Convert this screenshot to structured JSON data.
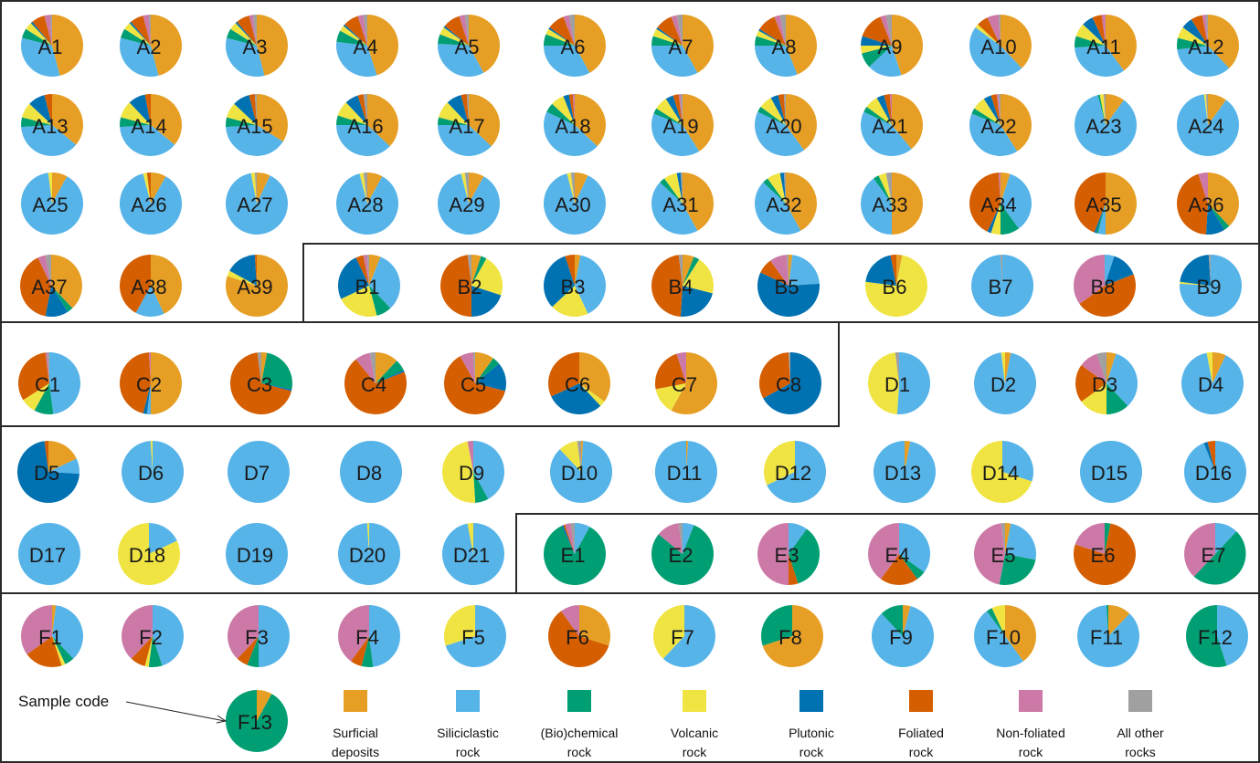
{
  "chart_data": {
    "type": "pie",
    "title": "",
    "categories": [
      "Surficial deposits",
      "Siliciclastic rock",
      "(Bio)chemical rock",
      "Volcanic rock",
      "Plutonic rock",
      "Foliated rock",
      "Non-foliated rock",
      "All other rocks"
    ],
    "legend": [
      {
        "line1": "Surficial",
        "line2": "deposits",
        "color": "#E69F24"
      },
      {
        "line1": "Siliciclastic",
        "line2": "rock",
        "color": "#56B4E9"
      },
      {
        "line1": "(Bio)chemical",
        "line2": "rock",
        "color": "#009E73"
      },
      {
        "line1": "Volcanic",
        "line2": "rock",
        "color": "#F0E442"
      },
      {
        "line1": "Plutonic",
        "line2": "rock",
        "color": "#0072B2"
      },
      {
        "line1": "Foliated",
        "line2": "rock",
        "color": "#D55E00"
      },
      {
        "line1": "Non-foliated",
        "line2": "rock",
        "color": "#CC79A7"
      },
      {
        "line1": "All other",
        "line2": "rocks",
        "color": "#A0A0A0"
      }
    ],
    "legend_placement": "bottom",
    "annotation": "Sample code",
    "annotation_target": "F13",
    "units": "percent",
    "samples": [
      {
        "code": "A1",
        "values": [
          46,
          33,
          5,
          4,
          1,
          7,
          3,
          1
        ]
      },
      {
        "code": "A2",
        "values": [
          46,
          33,
          5,
          4,
          1,
          7,
          3,
          1
        ]
      },
      {
        "code": "A3",
        "values": [
          46,
          33,
          5,
          4,
          1,
          7,
          2,
          2
        ]
      },
      {
        "code": "A4",
        "values": [
          45,
          32,
          6,
          3,
          1,
          8,
          3,
          2
        ]
      },
      {
        "code": "A5",
        "values": [
          42,
          34,
          5,
          4,
          1,
          9,
          3,
          2
        ]
      },
      {
        "code": "A6",
        "values": [
          42,
          33,
          6,
          3,
          1,
          9,
          3,
          3
        ]
      },
      {
        "code": "A7",
        "values": [
          42,
          33,
          5,
          4,
          1,
          9,
          3,
          3
        ]
      },
      {
        "code": "A8",
        "values": [
          44,
          31,
          5,
          3,
          1,
          10,
          3,
          3
        ]
      },
      {
        "code": "A9",
        "values": [
          45,
          18,
          8,
          4,
          5,
          14,
          3,
          3
        ]
      },
      {
        "code": "A10",
        "values": [
          38,
          47,
          0,
          2,
          0,
          6,
          6,
          1
        ]
      },
      {
        "code": "A11",
        "values": [
          40,
          34,
          6,
          7,
          6,
          5,
          2,
          0
        ]
      },
      {
        "code": "A12",
        "values": [
          38,
          35,
          6,
          6,
          6,
          6,
          2,
          1
        ]
      },
      {
        "code": "A13",
        "values": [
          36,
          38,
          5,
          8,
          9,
          4,
          0,
          0
        ]
      },
      {
        "code": "A14",
        "values": [
          36,
          38,
          5,
          9,
          9,
          3,
          0,
          0
        ]
      },
      {
        "code": "A15",
        "values": [
          34,
          40,
          5,
          8,
          9,
          3,
          0,
          1
        ]
      },
      {
        "code": "A16",
        "values": [
          37,
          38,
          5,
          8,
          7,
          3,
          0,
          2
        ]
      },
      {
        "code": "A17",
        "values": [
          37,
          38,
          4,
          9,
          8,
          3,
          0,
          1
        ]
      },
      {
        "code": "A18",
        "values": [
          37,
          45,
          5,
          7,
          3,
          2,
          1,
          0
        ]
      },
      {
        "code": "A19",
        "values": [
          41,
          40,
          3,
          7,
          4,
          3,
          1,
          1
        ]
      },
      {
        "code": "A20",
        "values": [
          40,
          42,
          3,
          7,
          4,
          3,
          0,
          1
        ]
      },
      {
        "code": "A21",
        "values": [
          39,
          43,
          3,
          7,
          4,
          3,
          1,
          0
        ]
      },
      {
        "code": "A22",
        "values": [
          41,
          40,
          3,
          7,
          4,
          3,
          1,
          1
        ]
      },
      {
        "code": "A23",
        "values": [
          10,
          86,
          1,
          2,
          0,
          0,
          0,
          1
        ]
      },
      {
        "code": "A24",
        "values": [
          10,
          88,
          0,
          1,
          0,
          0,
          0,
          1
        ]
      },
      {
        "code": "A25",
        "values": [
          8,
          90,
          0,
          2,
          0,
          0,
          0,
          0
        ]
      },
      {
        "code": "A26",
        "values": [
          8,
          88,
          0,
          2,
          0,
          2,
          0,
          0
        ]
      },
      {
        "code": "A27",
        "values": [
          7,
          90,
          0,
          2,
          0,
          0,
          0,
          1
        ]
      },
      {
        "code": "A28",
        "values": [
          8,
          88,
          0,
          2,
          0,
          0,
          0,
          2
        ]
      },
      {
        "code": "A29",
        "values": [
          8,
          88,
          0,
          2,
          0,
          0,
          0,
          2
        ]
      },
      {
        "code": "A30",
        "values": [
          7,
          89,
          0,
          2,
          0,
          0,
          0,
          2
        ]
      },
      {
        "code": "A31",
        "values": [
          42,
          45,
          3,
          7,
          2,
          0,
          0,
          1
        ]
      },
      {
        "code": "A32",
        "values": [
          42,
          45,
          3,
          7,
          2,
          0,
          0,
          1
        ]
      },
      {
        "code": "A33",
        "values": [
          50,
          40,
          3,
          4,
          0,
          0,
          0,
          3
        ]
      },
      {
        "code": "A34",
        "values": [
          5,
          35,
          10,
          5,
          2,
          42,
          1,
          0
        ]
      },
      {
        "code": "A35",
        "values": [
          50,
          4,
          1,
          0,
          1,
          44,
          0,
          0
        ]
      },
      {
        "code": "A36",
        "values": [
          38,
          0,
          3,
          0,
          10,
          44,
          5,
          0
        ]
      },
      {
        "code": "A37",
        "values": [
          38,
          0,
          3,
          0,
          12,
          40,
          4,
          3
        ]
      },
      {
        "code": "A38",
        "values": [
          43,
          15,
          0,
          0,
          0,
          42,
          0,
          0
        ]
      },
      {
        "code": "A39",
        "values": [
          80,
          0,
          0,
          3,
          16,
          1,
          0,
          0
        ]
      },
      {
        "code": "B1",
        "values": [
          6,
          32,
          8,
          22,
          25,
          4,
          2,
          1
        ]
      },
      {
        "code": "B2",
        "values": [
          5,
          0,
          3,
          22,
          20,
          48,
          0,
          2
        ]
      },
      {
        "code": "B3",
        "values": [
          3,
          40,
          0,
          20,
          32,
          5,
          0,
          0
        ]
      },
      {
        "code": "B4",
        "values": [
          6,
          0,
          3,
          20,
          22,
          47,
          0,
          2
        ]
      },
      {
        "code": "B5",
        "values": [
          2,
          22,
          0,
          0,
          58,
          8,
          9,
          1
        ]
      },
      {
        "code": "B6",
        "values": [
          3,
          0,
          0,
          74,
          20,
          3,
          0,
          0
        ]
      },
      {
        "code": "B7",
        "values": [
          0,
          99,
          0,
          0,
          0,
          0,
          0,
          1
        ]
      },
      {
        "code": "B8",
        "values": [
          0,
          5,
          0,
          0,
          14,
          46,
          35,
          0
        ]
      },
      {
        "code": "B9",
        "values": [
          0,
          76,
          0,
          1,
          22,
          0,
          0,
          1
        ]
      },
      {
        "code": "C1",
        "values": [
          0,
          48,
          10,
          8,
          0,
          32,
          1,
          1
        ]
      },
      {
        "code": "C2",
        "values": [
          50,
          2,
          0,
          0,
          2,
          45,
          1,
          0
        ]
      },
      {
        "code": "C3",
        "values": [
          3,
          0,
          25,
          0,
          1,
          69,
          0,
          2
        ]
      },
      {
        "code": "C4",
        "values": [
          12,
          0,
          6,
          0,
          1,
          70,
          8,
          3
        ]
      },
      {
        "code": "C5",
        "values": [
          10,
          0,
          4,
          0,
          15,
          63,
          7,
          1
        ]
      },
      {
        "code": "C6",
        "values": [
          35,
          0,
          0,
          3,
          30,
          32,
          0,
          0
        ]
      },
      {
        "code": "C7",
        "values": [
          58,
          0,
          0,
          14,
          0,
          23,
          5,
          0
        ]
      },
      {
        "code": "C8",
        "values": [
          0,
          0,
          0,
          0,
          67,
          32,
          0,
          1
        ]
      },
      {
        "code": "D1",
        "values": [
          0,
          51,
          0,
          47,
          0,
          0,
          0,
          2
        ]
      },
      {
        "code": "D2",
        "values": [
          3,
          95,
          0,
          2,
          0,
          0,
          0,
          0
        ]
      },
      {
        "code": "D3",
        "values": [
          5,
          33,
          12,
          15,
          0,
          20,
          10,
          5
        ]
      },
      {
        "code": "D4",
        "values": [
          7,
          90,
          0,
          3,
          0,
          0,
          0,
          0
        ]
      },
      {
        "code": "D5",
        "values": [
          18,
          8,
          0,
          0,
          72,
          2,
          0,
          0
        ]
      },
      {
        "code": "D6",
        "values": [
          0,
          99,
          0,
          1,
          0,
          0,
          0,
          0
        ]
      },
      {
        "code": "D7",
        "values": [
          0,
          100,
          0,
          0,
          0,
          0,
          0,
          0
        ]
      },
      {
        "code": "D8",
        "values": [
          0,
          100,
          0,
          0,
          0,
          0,
          0,
          0
        ]
      },
      {
        "code": "D9",
        "values": [
          0,
          42,
          7,
          48,
          0,
          0,
          3,
          0
        ]
      },
      {
        "code": "D10",
        "values": [
          1,
          87,
          0,
          10,
          0,
          0,
          0,
          2
        ]
      },
      {
        "code": "D11",
        "values": [
          1,
          99,
          0,
          0,
          0,
          0,
          0,
          0
        ]
      },
      {
        "code": "D12",
        "values": [
          0,
          68,
          0,
          32,
          0,
          0,
          0,
          0
        ]
      },
      {
        "code": "D13",
        "values": [
          3,
          97,
          0,
          0,
          0,
          0,
          0,
          0
        ]
      },
      {
        "code": "D14",
        "values": [
          0,
          30,
          0,
          70,
          0,
          0,
          0,
          0
        ]
      },
      {
        "code": "D15",
        "values": [
          0,
          100,
          0,
          0,
          0,
          0,
          0,
          0
        ]
      },
      {
        "code": "D16",
        "values": [
          0,
          94,
          0,
          0,
          2,
          4,
          0,
          0
        ]
      },
      {
        "code": "D17",
        "values": [
          0,
          100,
          0,
          0,
          0,
          0,
          0,
          0
        ]
      },
      {
        "code": "D18",
        "values": [
          0,
          18,
          0,
          82,
          0,
          0,
          0,
          0
        ]
      },
      {
        "code": "D19",
        "values": [
          0,
          100,
          0,
          0,
          0,
          0,
          0,
          0
        ]
      },
      {
        "code": "D20",
        "values": [
          0,
          99,
          0,
          1,
          0,
          0,
          0,
          0
        ]
      },
      {
        "code": "D21",
        "values": [
          0,
          97,
          0,
          3,
          0,
          0,
          0,
          0
        ]
      },
      {
        "code": "E1",
        "values": [
          0,
          8,
          85,
          0,
          1,
          1,
          3,
          2
        ]
      },
      {
        "code": "E2",
        "values": [
          0,
          6,
          80,
          0,
          0,
          0,
          12,
          2
        ]
      },
      {
        "code": "E3",
        "values": [
          0,
          10,
          35,
          0,
          0,
          5,
          50,
          0
        ]
      },
      {
        "code": "E4",
        "values": [
          0,
          35,
          5,
          0,
          0,
          20,
          40,
          0
        ]
      },
      {
        "code": "E5",
        "values": [
          3,
          25,
          25,
          0,
          0,
          0,
          45,
          2
        ]
      },
      {
        "code": "E6",
        "values": [
          0,
          0,
          3,
          0,
          0,
          77,
          20,
          0
        ]
      },
      {
        "code": "E7",
        "values": [
          0,
          12,
          50,
          0,
          0,
          0,
          38,
          0
        ]
      },
      {
        "code": "F1",
        "values": [
          2,
          36,
          5,
          2,
          0,
          20,
          35,
          0
        ]
      },
      {
        "code": "F2",
        "values": [
          0,
          45,
          7,
          2,
          0,
          8,
          38,
          0
        ]
      },
      {
        "code": "F3",
        "values": [
          0,
          50,
          6,
          0,
          0,
          6,
          38,
          0
        ]
      },
      {
        "code": "F4",
        "values": [
          0,
          48,
          6,
          0,
          0,
          6,
          40,
          0
        ]
      },
      {
        "code": "F5",
        "values": [
          0,
          70,
          0,
          30,
          0,
          0,
          0,
          0
        ]
      },
      {
        "code": "F6",
        "values": [
          30,
          0,
          0,
          0,
          0,
          60,
          10,
          0
        ]
      },
      {
        "code": "F7",
        "values": [
          0,
          62,
          0,
          38,
          0,
          0,
          0,
          0
        ]
      },
      {
        "code": "F8",
        "values": [
          70,
          0,
          30,
          0,
          0,
          0,
          0,
          0
        ]
      },
      {
        "code": "F9",
        "values": [
          4,
          84,
          12,
          0,
          0,
          0,
          0,
          0
        ]
      },
      {
        "code": "F10",
        "values": [
          40,
          50,
          3,
          7,
          0,
          0,
          0,
          0
        ]
      },
      {
        "code": "F11",
        "values": [
          12,
          87,
          1,
          0,
          0,
          0,
          0,
          0
        ]
      },
      {
        "code": "F12",
        "values": [
          0,
          45,
          55,
          0,
          0,
          0,
          0,
          0
        ]
      },
      {
        "code": "F13",
        "values": [
          8,
          0,
          92,
          0,
          0,
          0,
          0,
          0
        ]
      }
    ]
  }
}
